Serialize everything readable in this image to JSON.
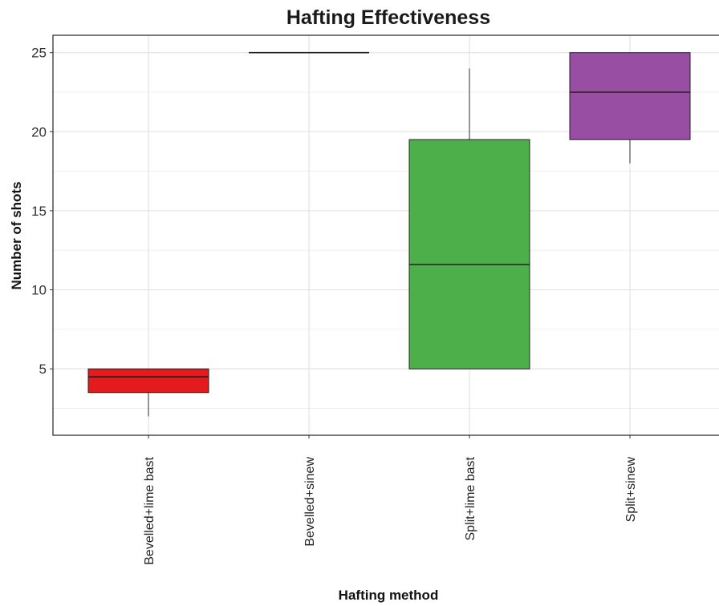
{
  "chart_data": {
    "type": "box",
    "title": "Hafting Effectiveness",
    "xlabel": "Hafting method",
    "ylabel": "Number of shots",
    "ylim": [
      0.8,
      26.1
    ],
    "yticks": [
      5,
      10,
      15,
      20,
      25
    ],
    "grid": true,
    "categories": [
      "Bevelled+lime bast",
      "Bevelled+sinew",
      "Split+lime bast",
      "Split+sinew"
    ],
    "boxes": [
      {
        "category": "Bevelled+lime bast",
        "min": 2,
        "q1": 3.5,
        "median": 4.5,
        "q3": 5,
        "max": 5,
        "color": "#e41a1c"
      },
      {
        "category": "Bevelled+sinew",
        "min": 25,
        "q1": 25,
        "median": 25,
        "q3": 25,
        "max": 25,
        "color": "#377eb8"
      },
      {
        "category": "Split+lime bast",
        "min": 5,
        "q1": 5,
        "median": 11.6,
        "q3": 19.5,
        "max": 24,
        "color": "#4daf4a"
      },
      {
        "category": "Split+sinew",
        "min": 18,
        "q1": 19.5,
        "median": 22.5,
        "q3": 25,
        "max": 25,
        "color": "#984ea3"
      }
    ]
  }
}
